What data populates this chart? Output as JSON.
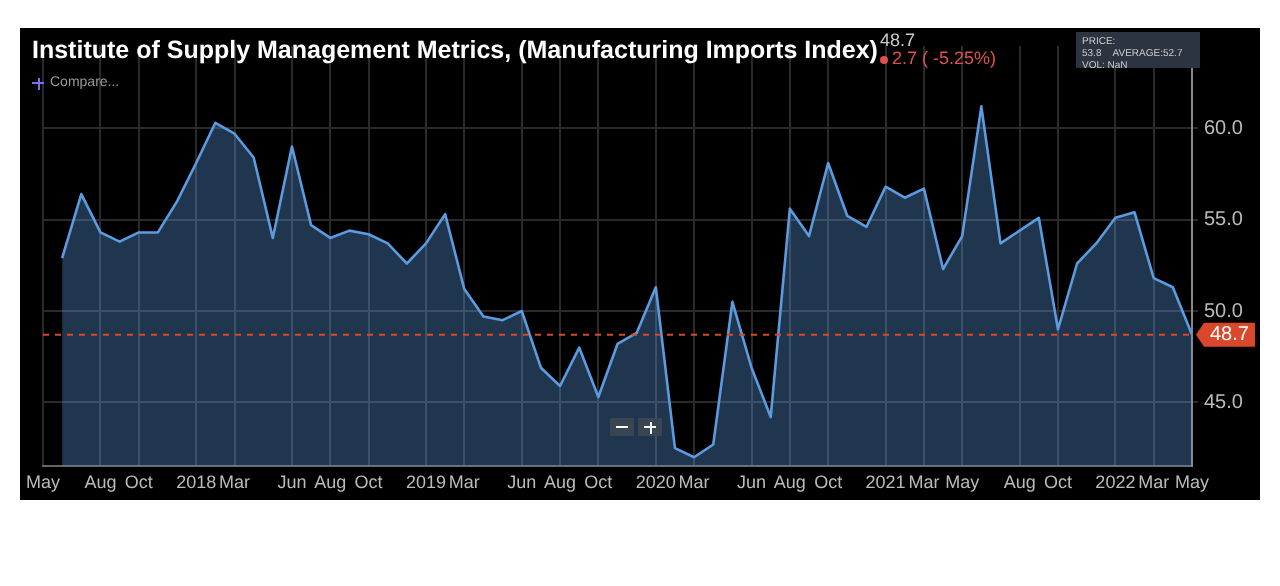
{
  "chart_data": {
    "type": "area",
    "title": "Institute of Supply Management Metrics, (Manufacturing Imports Index)",
    "x": [
      "2017-06",
      "2017-07",
      "2017-08",
      "2017-09",
      "2017-10",
      "2017-11",
      "2017-12",
      "2018-01",
      "2018-02",
      "2018-03",
      "2018-04",
      "2018-05",
      "2018-06",
      "2018-07",
      "2018-08",
      "2018-09",
      "2018-10",
      "2018-11",
      "2018-12",
      "2019-01",
      "2019-02",
      "2019-03",
      "2019-04",
      "2019-05",
      "2019-06",
      "2019-07",
      "2019-08",
      "2019-09",
      "2019-10",
      "2019-11",
      "2019-12",
      "2020-01",
      "2020-02",
      "2020-03",
      "2020-04",
      "2020-05",
      "2020-06",
      "2020-07",
      "2020-08",
      "2020-09",
      "2020-10",
      "2020-11",
      "2020-12",
      "2021-01",
      "2021-02",
      "2021-03",
      "2021-04",
      "2021-05",
      "2021-06",
      "2021-07",
      "2021-08",
      "2021-09",
      "2021-10",
      "2021-11",
      "2021-12",
      "2022-01",
      "2022-02",
      "2022-03",
      "2022-04",
      "2022-05"
    ],
    "series": [
      {
        "color": "#5b9be0",
        "values": [
          52.9,
          56.4,
          54.3,
          53.8,
          54.3,
          54.3,
          56.0,
          58.1,
          60.3,
          59.7,
          58.4,
          54.0,
          59.0,
          54.7,
          54.0,
          54.4,
          54.2,
          53.7,
          52.6,
          53.7,
          55.3,
          51.2,
          49.7,
          49.5,
          50.0,
          46.9,
          45.9,
          48.0,
          45.3,
          48.2,
          48.8,
          51.3,
          42.5,
          42.0,
          42.7,
          50.5,
          46.9,
          44.2,
          55.6,
          54.1,
          58.1,
          55.2,
          54.6,
          56.8,
          56.2,
          56.7,
          52.3,
          54.1,
          61.2,
          53.7,
          54.4,
          55.1,
          49.0,
          52.6,
          53.7,
          55.1,
          55.4,
          51.8,
          51.3,
          48.7
        ]
      }
    ],
    "xlim": [
      "2017-05",
      "2022-05"
    ],
    "xticks": [
      {
        "value": "2017-05",
        "label": "May"
      },
      {
        "value": "2017-08",
        "label": "Aug"
      },
      {
        "value": "2017-10",
        "label": "Oct"
      },
      {
        "value": "2018-01",
        "label": "2018"
      },
      {
        "value": "2018-03",
        "label": "Mar"
      },
      {
        "value": "2018-06",
        "label": "Jun"
      },
      {
        "value": "2018-08",
        "label": "Aug"
      },
      {
        "value": "2018-10",
        "label": "Oct"
      },
      {
        "value": "2019-01",
        "label": "2019"
      },
      {
        "value": "2019-03",
        "label": "Mar"
      },
      {
        "value": "2019-06",
        "label": "Jun"
      },
      {
        "value": "2019-08",
        "label": "Aug"
      },
      {
        "value": "2019-10",
        "label": "Oct"
      },
      {
        "value": "2020-01",
        "label": "2020"
      },
      {
        "value": "2020-03",
        "label": "Mar"
      },
      {
        "value": "2020-06",
        "label": "Jun"
      },
      {
        "value": "2020-08",
        "label": "Aug"
      },
      {
        "value": "2020-10",
        "label": "Oct"
      },
      {
        "value": "2021-01",
        "label": "2021"
      },
      {
        "value": "2021-03",
        "label": "Mar"
      },
      {
        "value": "2021-05",
        "label": "May"
      },
      {
        "value": "2021-08",
        "label": "Aug"
      },
      {
        "value": "2021-10",
        "label": "Oct"
      },
      {
        "value": "2022-01",
        "label": "2022"
      },
      {
        "value": "2022-03",
        "label": "Mar"
      },
      {
        "value": "2022-05",
        "label": "May"
      }
    ],
    "ylim": [
      41.5,
      64.5
    ],
    "yticks": [
      {
        "value": 45,
        "label": "45.0"
      },
      {
        "value": 50,
        "label": "50.0"
      },
      {
        "value": 55,
        "label": "55.0"
      },
      {
        "value": 60,
        "label": "60.0"
      }
    ],
    "grid": true,
    "ref_lines": [
      {
        "axis": "y",
        "value": 48.7,
        "label": "48.7",
        "color": "#d9482b",
        "line_style": "dashed"
      }
    ],
    "annotations": [
      "48.7",
      "2.7 ( -5.25%)",
      "Compare...",
      "PRICE: 53.8",
      "AVERAGE:52.7",
      "VOL: NaN"
    ]
  }
}
